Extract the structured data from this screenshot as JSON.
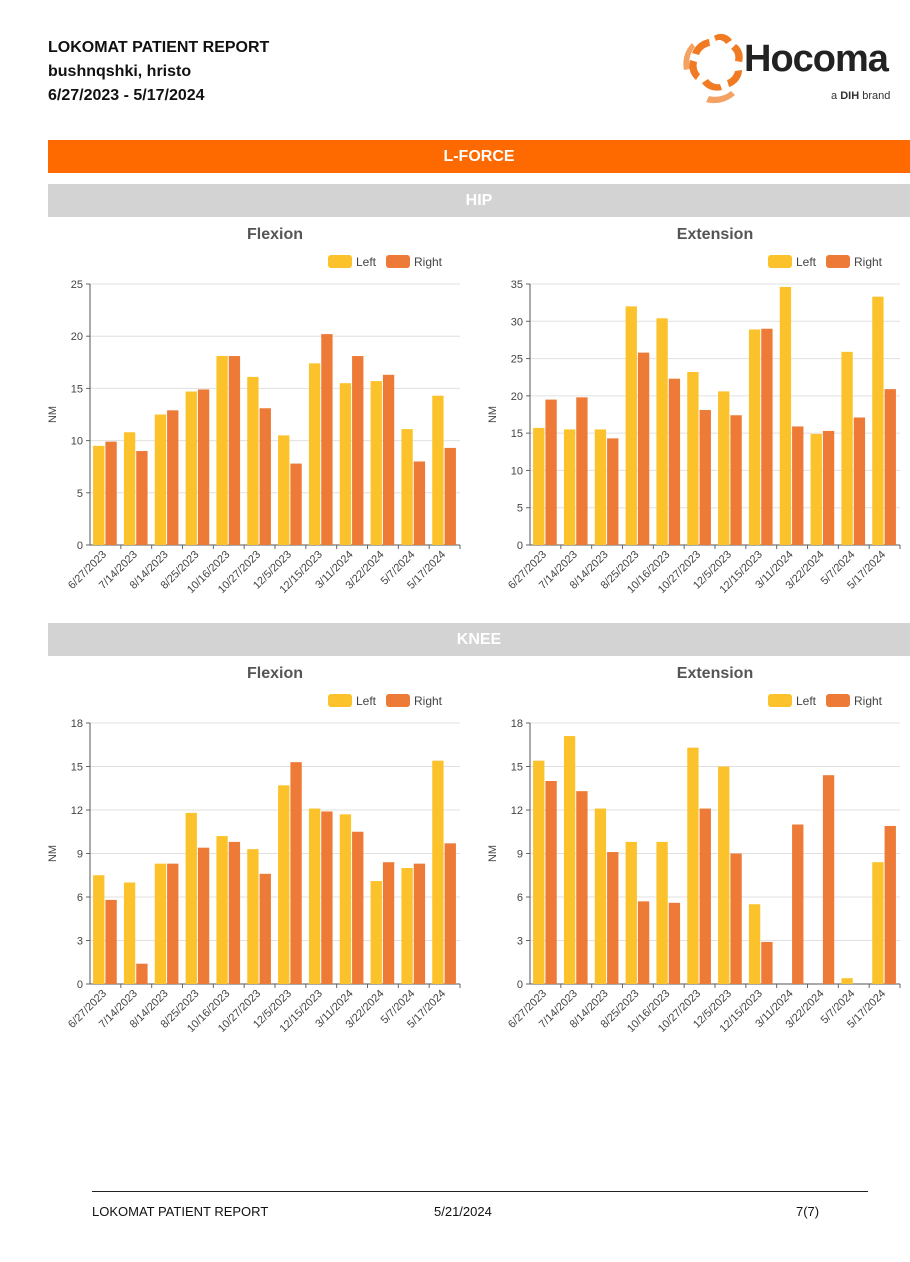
{
  "header": {
    "title": "LOKOMAT PATIENT REPORT",
    "patient": "bushnqshki, hristo",
    "date_range": "6/27/2023 - 5/17/2024"
  },
  "logo": {
    "word": "Hocoma",
    "sub_prefix": "a ",
    "sub_brand": "DIH",
    "sub_suffix": " brand"
  },
  "section_title": "L-FORCE",
  "groups": {
    "hip": "HIP",
    "knee": "KNEE"
  },
  "colors": {
    "left": "#fcc22b",
    "right": "#ed7a37",
    "accent": "#ff6a00"
  },
  "chart_data": [
    {
      "type": "bar",
      "group": "HIP",
      "title": "Flexion",
      "ylabel": "NM",
      "xlabel": "",
      "ylim": [
        0,
        25
      ],
      "yticks": [
        0,
        5,
        10,
        15,
        20,
        25
      ],
      "legend": "top-right",
      "grid": true,
      "categories": [
        "6/27/2023",
        "7/14/2023",
        "8/14/2023",
        "8/25/2023",
        "10/16/2023",
        "10/27/2023",
        "12/5/2023",
        "12/15/2023",
        "3/11/2024",
        "3/22/2024",
        "5/7/2024",
        "5/17/2024"
      ],
      "series": [
        {
          "name": "Left",
          "values": [
            9.5,
            10.8,
            12.5,
            14.7,
            18.1,
            16.1,
            10.5,
            17.4,
            15.5,
            15.7,
            11.1,
            14.3
          ]
        },
        {
          "name": "Right",
          "values": [
            9.9,
            9.0,
            12.9,
            14.9,
            18.1,
            13.1,
            7.8,
            20.2,
            18.1,
            16.3,
            8.0,
            9.3
          ]
        }
      ]
    },
    {
      "type": "bar",
      "group": "HIP",
      "title": "Extension",
      "ylabel": "NM",
      "xlabel": "",
      "ylim": [
        0,
        35
      ],
      "yticks": [
        0,
        5,
        10,
        15,
        20,
        25,
        30,
        35
      ],
      "legend": "top-right",
      "grid": true,
      "categories": [
        "6/27/2023",
        "7/14/2023",
        "8/14/2023",
        "8/25/2023",
        "10/16/2023",
        "10/27/2023",
        "12/5/2023",
        "12/15/2023",
        "3/11/2024",
        "3/22/2024",
        "5/7/2024",
        "5/17/2024"
      ],
      "series": [
        {
          "name": "Left",
          "values": [
            15.7,
            15.5,
            15.5,
            32.0,
            30.4,
            23.2,
            20.6,
            28.9,
            34.6,
            14.9,
            25.9,
            33.3
          ]
        },
        {
          "name": "Right",
          "values": [
            19.5,
            19.8,
            14.3,
            25.8,
            22.3,
            18.1,
            17.4,
            29.0,
            15.9,
            15.3,
            17.1,
            20.9
          ]
        }
      ]
    },
    {
      "type": "bar",
      "group": "KNEE",
      "title": "Flexion",
      "ylabel": "NM",
      "xlabel": "",
      "ylim": [
        0,
        18
      ],
      "yticks": [
        0,
        3,
        6,
        9,
        12,
        15,
        18
      ],
      "legend": "top-right",
      "grid": true,
      "categories": [
        "6/27/2023",
        "7/14/2023",
        "8/14/2023",
        "8/25/2023",
        "10/16/2023",
        "10/27/2023",
        "12/5/2023",
        "12/15/2023",
        "3/11/2024",
        "3/22/2024",
        "5/7/2024",
        "5/17/2024"
      ],
      "series": [
        {
          "name": "Left",
          "values": [
            7.5,
            7.0,
            8.3,
            11.8,
            10.2,
            9.3,
            13.7,
            12.1,
            11.7,
            7.1,
            8.0,
            15.4
          ]
        },
        {
          "name": "Right",
          "values": [
            5.8,
            1.4,
            8.3,
            9.4,
            9.8,
            7.6,
            15.3,
            11.9,
            10.5,
            8.4,
            8.3,
            9.7
          ]
        }
      ]
    },
    {
      "type": "bar",
      "group": "KNEE",
      "title": "Extension",
      "ylabel": "NM",
      "xlabel": "",
      "ylim": [
        0,
        18
      ],
      "yticks": [
        0,
        3,
        6,
        9,
        12,
        15,
        18
      ],
      "legend": "top-right",
      "grid": true,
      "categories": [
        "6/27/2023",
        "7/14/2023",
        "8/14/2023",
        "8/25/2023",
        "10/16/2023",
        "10/27/2023",
        "12/5/2023",
        "12/15/2023",
        "3/11/2024",
        "3/22/2024",
        "5/7/2024",
        "5/17/2024"
      ],
      "series": [
        {
          "name": "Left",
          "values": [
            15.4,
            17.1,
            12.1,
            9.8,
            9.8,
            16.3,
            15.0,
            5.5,
            0,
            0,
            0.4,
            8.4
          ]
        },
        {
          "name": "Right",
          "values": [
            14.0,
            13.3,
            9.1,
            5.7,
            5.6,
            12.1,
            9.0,
            2.9,
            11.0,
            14.4,
            0,
            10.9
          ]
        }
      ]
    }
  ],
  "footer": {
    "title": "LOKOMAT PATIENT REPORT",
    "date": "5/21/2024",
    "page": "7(7)"
  }
}
